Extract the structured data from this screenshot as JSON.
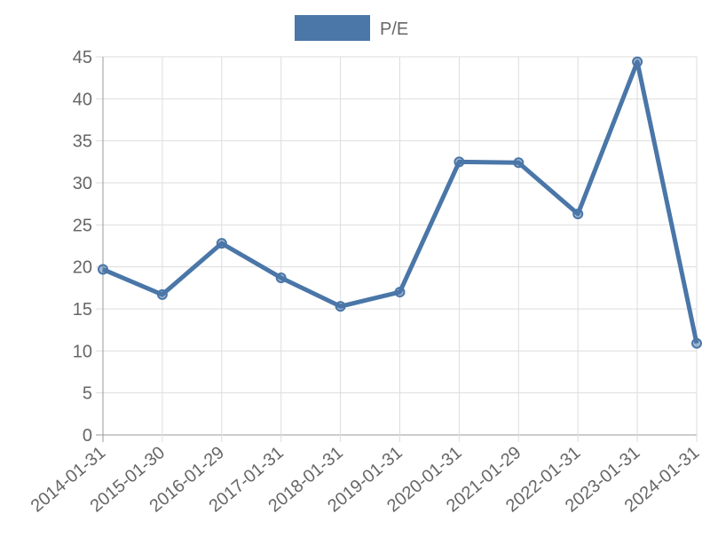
{
  "chart_data": {
    "type": "line",
    "categories": [
      "2014-01-31",
      "2015-01-30",
      "2016-01-29",
      "2017-01-31",
      "2018-01-31",
      "2019-01-31",
      "2020-01-31",
      "2021-01-29",
      "2022-01-31",
      "2023-01-31",
      "2024-01-31"
    ],
    "series": [
      {
        "name": "P/E",
        "color": "#4a76a8",
        "values": [
          19.7,
          16.7,
          22.8,
          18.7,
          15.3,
          17.0,
          32.5,
          32.4,
          26.3,
          44.4,
          10.9
        ]
      }
    ],
    "ylim": [
      0,
      45
    ],
    "yticks": [
      0,
      5,
      10,
      15,
      20,
      25,
      30,
      35,
      40,
      45
    ],
    "grid": true,
    "legend": "top"
  }
}
